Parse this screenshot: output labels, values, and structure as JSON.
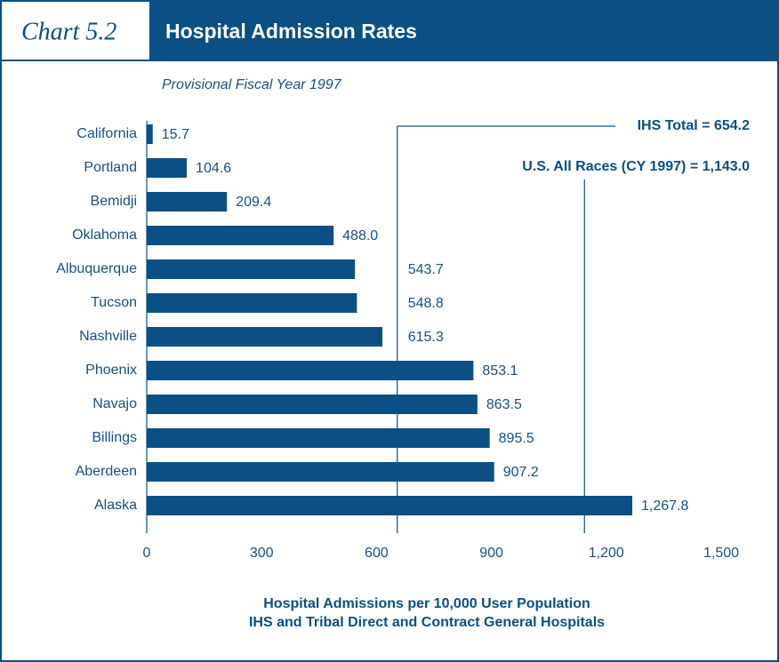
{
  "chart_data": {
    "type": "barh",
    "chart_number": "Chart 5.2",
    "title": "Hospital Admission Rates",
    "subtitle": "Provisional Fiscal Year 1997",
    "categories": [
      "California",
      "Portland",
      "Bemidji",
      "Oklahoma",
      "Albuquerque",
      "Tucson",
      "Nashville",
      "Phoenix",
      "Navajo",
      "Billings",
      "Aberdeen",
      "Alaska"
    ],
    "values": [
      15.7,
      104.6,
      209.4,
      488.0,
      543.7,
      548.8,
      615.3,
      853.1,
      863.5,
      895.5,
      907.2,
      1267.8
    ],
    "value_labels": [
      "15.7",
      "104.6",
      "209.4",
      "488.0",
      "543.7",
      "548.8",
      "615.3",
      "853.1",
      "863.5",
      "895.5",
      "907.2",
      "1,267.8"
    ],
    "color": "#0b4f85",
    "xlim": [
      0,
      1500
    ],
    "xticks": [
      0,
      300,
      600,
      900,
      {
        "value": 1200,
        "label": "1,200"
      },
      {
        "value": 1500,
        "label": "1,500"
      }
    ],
    "reference_lines": [
      {
        "label": "IHS Total = 654.2",
        "value": 654.2
      },
      {
        "label": "U.S. All Races (CY 1997) = 1,143.0",
        "value": 1143.0
      }
    ],
    "xlabel": [
      "Hospital Admissions per 10,000 User Population",
      "IHS and Tribal Direct and Contract General Hospitals"
    ]
  }
}
